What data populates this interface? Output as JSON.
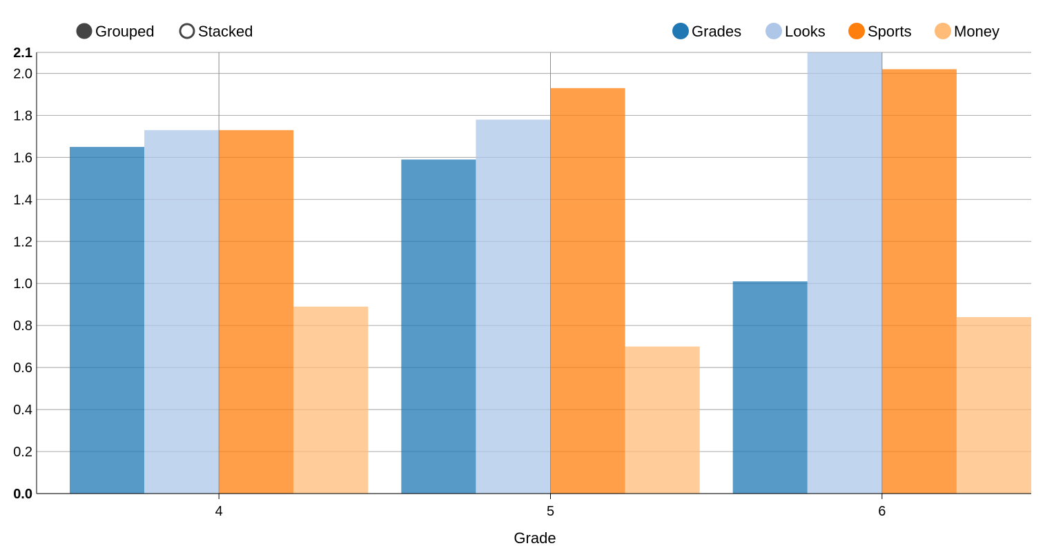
{
  "controls": [
    {
      "label": "Grouped",
      "selected": true
    },
    {
      "label": "Stacked",
      "selected": false
    }
  ],
  "chart_data": {
    "type": "bar",
    "mode": "grouped",
    "categories": [
      "4",
      "5",
      "6"
    ],
    "xlabel": "Grade",
    "ylabel": "",
    "ylim": [
      0,
      2.1
    ],
    "yticks": [
      "0.0",
      "0.2",
      "0.4",
      "0.6",
      "0.8",
      "1.0",
      "1.2",
      "1.4",
      "1.6",
      "1.8",
      "2.0",
      "2.1"
    ],
    "grid": true,
    "legend_position": "top-right",
    "series": [
      {
        "name": "Grades",
        "color": "#1f77b4",
        "values": [
          1.65,
          1.59,
          1.01
        ]
      },
      {
        "name": "Looks",
        "color": "#aec7e8",
        "values": [
          1.73,
          1.78,
          2.1
        ]
      },
      {
        "name": "Sports",
        "color": "#ff7f0e",
        "values": [
          1.73,
          1.93,
          2.02
        ]
      },
      {
        "name": "Money",
        "color": "#ffbb78",
        "values": [
          0.89,
          0.7,
          0.84
        ]
      }
    ]
  }
}
